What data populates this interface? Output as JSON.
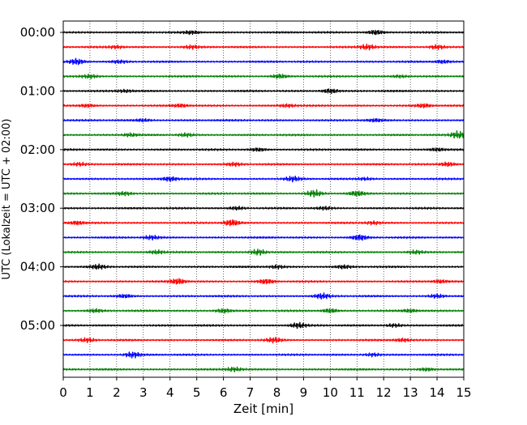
{
  "chart_data": {
    "type": "line",
    "title": "",
    "xlabel": "Zeit  [min]",
    "ylabel": "UTC (Lokalzeit = UTC + 02:00)",
    "xlim": [
      0,
      15
    ],
    "x_ticks": [
      0,
      1,
      2,
      3,
      4,
      5,
      6,
      7,
      8,
      9,
      10,
      11,
      12,
      13,
      14,
      15
    ],
    "grid": "vertical-dotted",
    "row_interval_minutes": 15,
    "trace_colors": [
      "#000000",
      "#ff0000",
      "#0000ff",
      "#008000"
    ],
    "hour_labels": [
      {
        "row": 0,
        "label": "00:00"
      },
      {
        "row": 4,
        "label": "01:00"
      },
      {
        "row": 8,
        "label": "02:00"
      },
      {
        "row": 12,
        "label": "03:00"
      },
      {
        "row": 16,
        "label": "04:00"
      },
      {
        "row": 20,
        "label": "05:00"
      }
    ],
    "traces": [
      {
        "start": "00:00",
        "events": [
          [
            4.8,
            0.6
          ],
          [
            11.7,
            0.9
          ]
        ]
      },
      {
        "start": "00:15",
        "events": [
          [
            2.0,
            0.5
          ],
          [
            4.8,
            0.6
          ],
          [
            11.4,
            1.0
          ],
          [
            14.0,
            0.8
          ]
        ]
      },
      {
        "start": "00:30",
        "events": [
          [
            0.5,
            1.2
          ],
          [
            2.1,
            0.5
          ],
          [
            14.2,
            0.6
          ]
        ]
      },
      {
        "start": "00:45",
        "events": [
          [
            1.0,
            0.6
          ],
          [
            8.1,
            0.8
          ],
          [
            12.6,
            0.5
          ]
        ]
      },
      {
        "start": "01:00",
        "events": [
          [
            2.3,
            0.5
          ],
          [
            10.0,
            0.9
          ]
        ]
      },
      {
        "start": "01:15",
        "events": [
          [
            0.9,
            0.6
          ],
          [
            4.4,
            0.6
          ],
          [
            8.4,
            0.6
          ],
          [
            13.5,
            0.7
          ]
        ]
      },
      {
        "start": "01:30",
        "events": [
          [
            3.0,
            0.5
          ],
          [
            11.7,
            0.5
          ]
        ]
      },
      {
        "start": "01:45",
        "events": [
          [
            2.5,
            0.6
          ],
          [
            4.6,
            0.6
          ],
          [
            14.8,
            1.4
          ]
        ]
      },
      {
        "start": "02:00",
        "events": [
          [
            7.3,
            0.6
          ],
          [
            14.0,
            0.6
          ]
        ]
      },
      {
        "start": "02:15",
        "events": [
          [
            0.6,
            0.6
          ],
          [
            6.4,
            0.6
          ],
          [
            14.4,
            0.8
          ]
        ]
      },
      {
        "start": "02:30",
        "events": [
          [
            4.0,
            0.9
          ],
          [
            8.6,
            0.9
          ],
          [
            11.3,
            0.5
          ]
        ]
      },
      {
        "start": "02:45",
        "events": [
          [
            2.3,
            0.6
          ],
          [
            9.4,
            1.3
          ],
          [
            11.0,
            0.9
          ]
        ]
      },
      {
        "start": "03:00",
        "events": [
          [
            6.5,
            0.6
          ],
          [
            9.8,
            0.5
          ]
        ]
      },
      {
        "start": "03:15",
        "events": [
          [
            0.5,
            0.7
          ],
          [
            6.3,
            1.2
          ],
          [
            11.6,
            0.6
          ]
        ]
      },
      {
        "start": "03:30",
        "events": [
          [
            3.3,
            0.7
          ],
          [
            11.1,
            1.1
          ]
        ]
      },
      {
        "start": "03:45",
        "events": [
          [
            3.5,
            0.7
          ],
          [
            7.3,
            1.1
          ],
          [
            13.2,
            0.6
          ]
        ]
      },
      {
        "start": "04:00",
        "events": [
          [
            1.3,
            0.8
          ],
          [
            8.0,
            0.6
          ],
          [
            10.5,
            0.6
          ]
        ]
      },
      {
        "start": "04:15",
        "events": [
          [
            4.3,
            1.1
          ],
          [
            7.6,
            0.9
          ],
          [
            14.1,
            0.6
          ]
        ]
      },
      {
        "start": "04:30",
        "events": [
          [
            2.3,
            0.6
          ],
          [
            9.7,
            1.0
          ],
          [
            14.0,
            0.7
          ]
        ]
      },
      {
        "start": "04:45",
        "events": [
          [
            1.2,
            0.6
          ],
          [
            6.0,
            0.8
          ],
          [
            10.0,
            0.8
          ],
          [
            13.0,
            0.6
          ]
        ]
      },
      {
        "start": "05:00",
        "events": [
          [
            8.8,
            1.0
          ],
          [
            12.4,
            0.6
          ]
        ]
      },
      {
        "start": "05:15",
        "events": [
          [
            0.9,
            0.7
          ],
          [
            7.9,
            0.9
          ],
          [
            12.7,
            0.6
          ]
        ]
      },
      {
        "start": "05:30",
        "events": [
          [
            2.6,
            1.1
          ],
          [
            11.6,
            0.6
          ]
        ]
      },
      {
        "start": "05:45",
        "events": [
          [
            6.4,
            0.8
          ],
          [
            13.6,
            0.6
          ]
        ]
      }
    ]
  }
}
